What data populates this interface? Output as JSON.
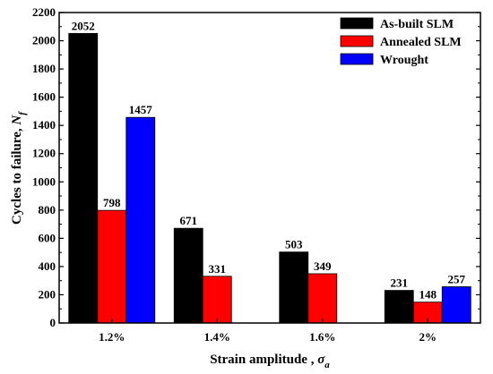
{
  "chart_data": {
    "type": "bar",
    "categories": [
      "1.2%",
      "1.4%",
      "1.6%",
      "2%"
    ],
    "series": [
      {
        "name": "As-built SLM",
        "values": [
          2052,
          671,
          503,
          231
        ],
        "color": "#000000"
      },
      {
        "name": "Annealed SLM",
        "values": [
          798,
          331,
          349,
          148
        ],
        "color": "#ff0000"
      },
      {
        "name": "Wrought",
        "values": [
          1457,
          null,
          null,
          257
        ],
        "color": "#0000ff"
      }
    ],
    "data_labels": [
      [
        "2052",
        "671",
        "503",
        "231"
      ],
      [
        "798",
        "331",
        "349",
        "148"
      ],
      [
        "1457",
        "",
        "",
        "257"
      ]
    ],
    "ylabel": {
      "main": "Cycles to failure, ",
      "symbol": "N",
      "sub": "f"
    },
    "xlabel": {
      "main": "Strain amplitude , ",
      "symbol": "σ",
      "sub": "a"
    },
    "ylim": [
      0,
      2200
    ],
    "yticks": [
      "0",
      "200",
      "400",
      "600",
      "800",
      "1000",
      "1200",
      "1400",
      "1600",
      "1800",
      "2000",
      "2200"
    ],
    "grid": false,
    "legend_position": "top-right"
  }
}
